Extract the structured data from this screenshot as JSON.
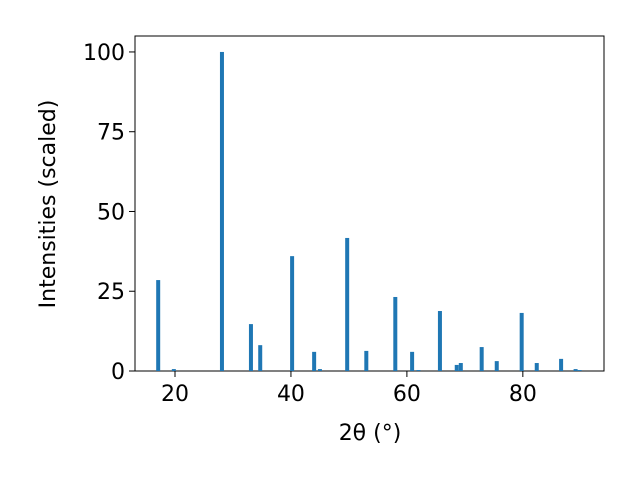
{
  "chart_data": {
    "type": "bar",
    "xlabel": "2θ (°)",
    "ylabel": "Intensities (scaled)",
    "x": [
      17.1,
      19.8,
      28.1,
      33.1,
      34.7,
      40.2,
      44.0,
      45.0,
      49.7,
      53.0,
      58.0,
      60.9,
      62.0,
      65.7,
      68.6,
      69.3,
      72.9,
      75.5,
      79.8,
      82.4,
      86.6,
      89.1,
      89.8
    ],
    "values": [
      28.5,
      0.6,
      100,
      14.7,
      8.1,
      36,
      6,
      0.6,
      41.7,
      6.3,
      23.2,
      6,
      0.3,
      18.8,
      1.9,
      2.5,
      7.5,
      3.1,
      18.2,
      2.5,
      3.8,
      0.6,
      0.3
    ],
    "color": "#1f77b4",
    "xlim": [
      13.1,
      94.0
    ],
    "ylim": [
      0,
      105
    ],
    "xticks": [
      20,
      40,
      60,
      80
    ],
    "yticks": [
      0,
      25,
      50,
      75,
      100
    ],
    "grid": false
  }
}
